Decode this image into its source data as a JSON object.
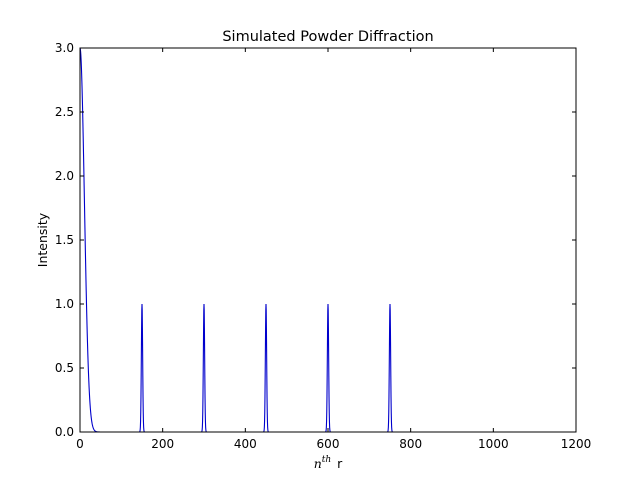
{
  "chart_data": {
    "type": "line",
    "title": "Simulated Powder Diffraction",
    "xlabel": {
      "math": "n",
      "sup": "th",
      "text": "r"
    },
    "ylabel": "Intensity",
    "xlim": [
      0,
      1200
    ],
    "ylim": [
      0.0,
      3.0
    ],
    "xticks": [
      0,
      200,
      400,
      600,
      800,
      1000,
      1200
    ],
    "xtick_labels": [
      "0",
      "200",
      "400",
      "600",
      "800",
      "1000",
      "1200"
    ],
    "yticks": [
      0.0,
      0.5,
      1.0,
      1.5,
      2.0,
      2.5,
      3.0
    ],
    "ytick_labels": [
      "0.0",
      "0.5",
      "1.0",
      "1.5",
      "2.0",
      "2.5",
      "3.0"
    ],
    "grid": false,
    "series": [
      {
        "color": "#0000cc",
        "x_range": [
          0,
          1000
        ],
        "initial_decay": {
          "x0": 0,
          "y0": 3.0,
          "decay_width": 15
        },
        "peaks": [
          {
            "x": 150,
            "y": 1.0
          },
          {
            "x": 300,
            "y": 1.0
          },
          {
            "x": 450,
            "y": 1.0
          },
          {
            "x": 600,
            "y": 1.0
          },
          {
            "x": 750,
            "y": 1.0
          }
        ],
        "peak_width": 2.2
      }
    ]
  }
}
